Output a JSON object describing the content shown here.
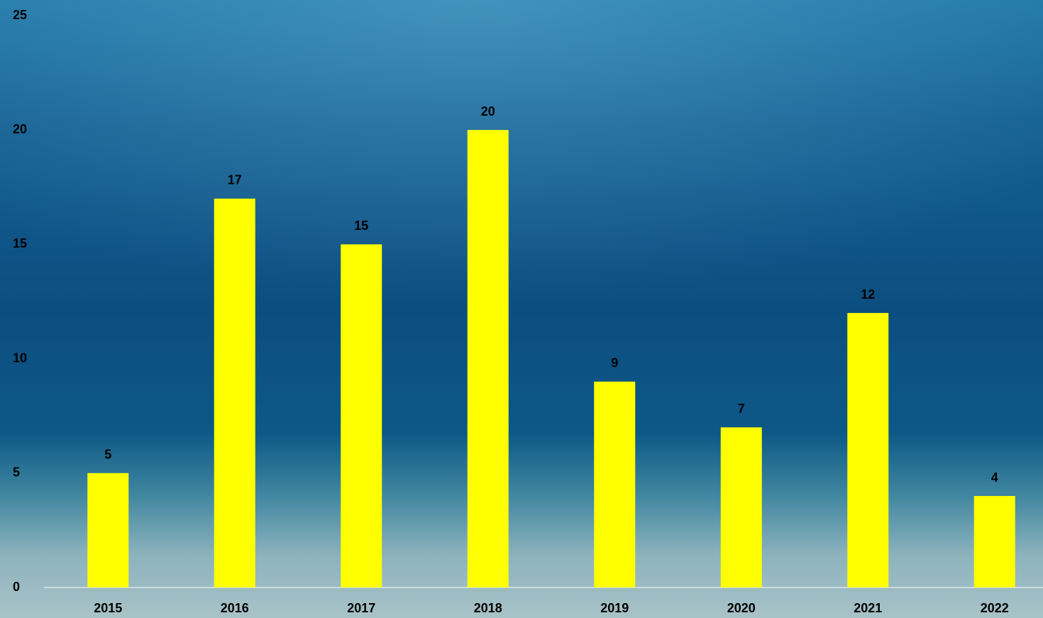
{
  "chart_data": {
    "type": "bar",
    "categories": [
      "2015",
      "2016",
      "2017",
      "2018",
      "2019",
      "2020",
      "2021",
      "2022"
    ],
    "values": [
      5,
      17,
      15,
      20,
      9,
      7,
      12,
      4
    ],
    "color": "#ffff00",
    "ylim": [
      0,
      25
    ],
    "yticks": [
      0,
      5,
      10,
      15,
      20,
      25
    ],
    "grid": false
  }
}
